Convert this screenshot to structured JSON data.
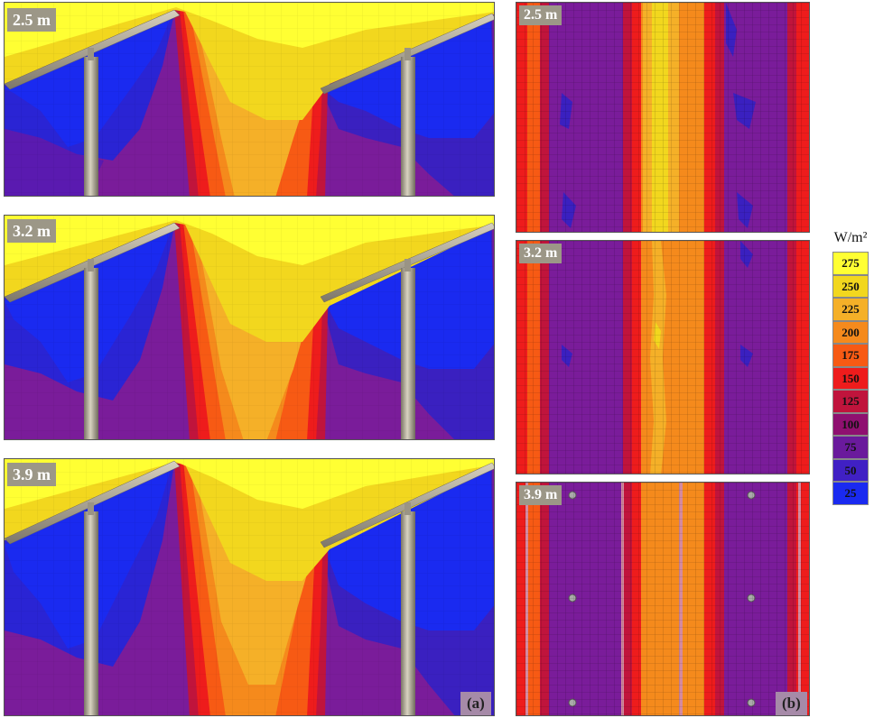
{
  "panels_a": [
    {
      "height_label": "2.5 m"
    },
    {
      "height_label": "3.2 m"
    },
    {
      "height_label": "3.9 m"
    }
  ],
  "panels_b": [
    {
      "height_label": "2.5 m"
    },
    {
      "height_label": "3.2 m"
    },
    {
      "height_label": "3.9 m"
    }
  ],
  "sublabels": {
    "a": "(a)",
    "b": "(b)"
  },
  "legend": {
    "unit": "W/m²",
    "items": [
      {
        "value": "275",
        "color": "#ffff33"
      },
      {
        "value": "250",
        "color": "#f2d71e"
      },
      {
        "value": "225",
        "color": "#f5b028"
      },
      {
        "value": "200",
        "color": "#f58a1c"
      },
      {
        "value": "175",
        "color": "#f75a14"
      },
      {
        "value": "150",
        "color": "#ee1c1c"
      },
      {
        "value": "125",
        "color": "#c0143c"
      },
      {
        "value": "100",
        "color": "#8f1070"
      },
      {
        "value": "75",
        "color": "#6a1a9c"
      },
      {
        "value": "50",
        "color": "#4020c4"
      },
      {
        "value": "25",
        "color": "#1a2af0"
      }
    ]
  }
}
